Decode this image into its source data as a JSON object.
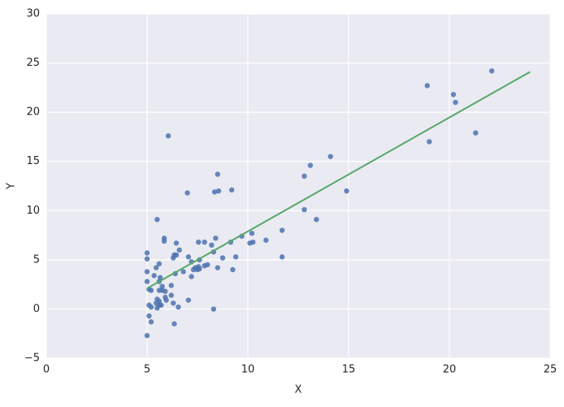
{
  "chart_data": {
    "type": "scatter",
    "xlabel": "X",
    "ylabel": "Y",
    "xlim": [
      0,
      25
    ],
    "ylim": [
      -5,
      30
    ],
    "xticks": [
      0,
      5,
      10,
      15,
      20,
      25
    ],
    "yticks": [
      {
        "value": -5,
        "label": "−5"
      },
      0,
      5,
      10,
      15,
      20,
      25,
      30
    ],
    "grid": true,
    "color": "#4c72b0",
    "x": [
      6.05,
      18.9,
      22.1,
      20.2,
      20.3,
      21.3,
      19.0,
      14.1,
      13.1,
      12.8,
      14.9,
      7.0,
      8.5,
      9.2,
      8.35,
      8.55,
      12.8,
      13.4,
      5.5,
      11.7,
      10.2,
      9.7,
      10.9,
      5.85,
      5.85,
      6.45,
      7.55,
      7.85,
      8.4,
      8.2,
      9.15,
      10.1,
      10.25,
      8.3,
      6.6,
      5.0,
      5.0,
      7.05,
      6.35,
      6.3,
      6.45,
      7.6,
      9.4,
      8.75,
      11.7,
      5.6,
      5.45,
      7.2,
      7.85,
      8.0,
      7.4,
      7.55,
      7.6,
      7.3,
      8.5,
      9.25,
      7.5,
      6.8,
      5.0,
      5.35,
      5.65,
      7.2,
      6.4,
      5.6,
      5.0,
      6.2,
      5.75,
      5.1,
      5.2,
      5.6,
      5.75,
      5.9,
      6.2,
      5.5,
      5.9,
      5.6,
      5.95,
      5.45,
      6.3,
      5.1,
      5.2,
      5.6,
      5.7,
      5.5,
      6.55,
      7.05,
      8.3,
      5.1,
      5.2,
      6.35,
      5.0
    ],
    "y": [
      17.6,
      22.7,
      24.2,
      21.8,
      21.0,
      17.9,
      17.0,
      15.5,
      14.6,
      13.5,
      12.0,
      11.8,
      13.7,
      12.1,
      11.9,
      12.0,
      10.1,
      9.1,
      9.1,
      8.0,
      7.7,
      7.4,
      7.0,
      7.2,
      6.9,
      6.7,
      6.8,
      6.8,
      7.2,
      6.5,
      6.8,
      6.7,
      6.8,
      5.8,
      6.0,
      5.7,
      5.1,
      5.3,
      5.5,
      5.2,
      5.5,
      5.0,
      5.3,
      5.2,
      5.3,
      4.6,
      4.2,
      4.8,
      4.4,
      4.5,
      4.2,
      4.3,
      4.1,
      4.0,
      4.2,
      4.0,
      4.0,
      3.8,
      3.8,
      3.4,
      3.2,
      3.3,
      3.6,
      2.8,
      2.8,
      2.4,
      2.3,
      2.0,
      1.9,
      1.9,
      1.9,
      1.8,
      1.4,
      1.0,
      1.2,
      0.8,
      0.9,
      0.6,
      0.6,
      0.4,
      0.2,
      0.4,
      0.4,
      0.1,
      0.2,
      0.9,
      0.0,
      -0.7,
      -1.3,
      -1.5,
      -2.7
    ],
    "fit": {
      "x": [
        5,
        24
      ],
      "y": [
        2.1,
        24.1
      ],
      "color": "#55a868"
    }
  }
}
